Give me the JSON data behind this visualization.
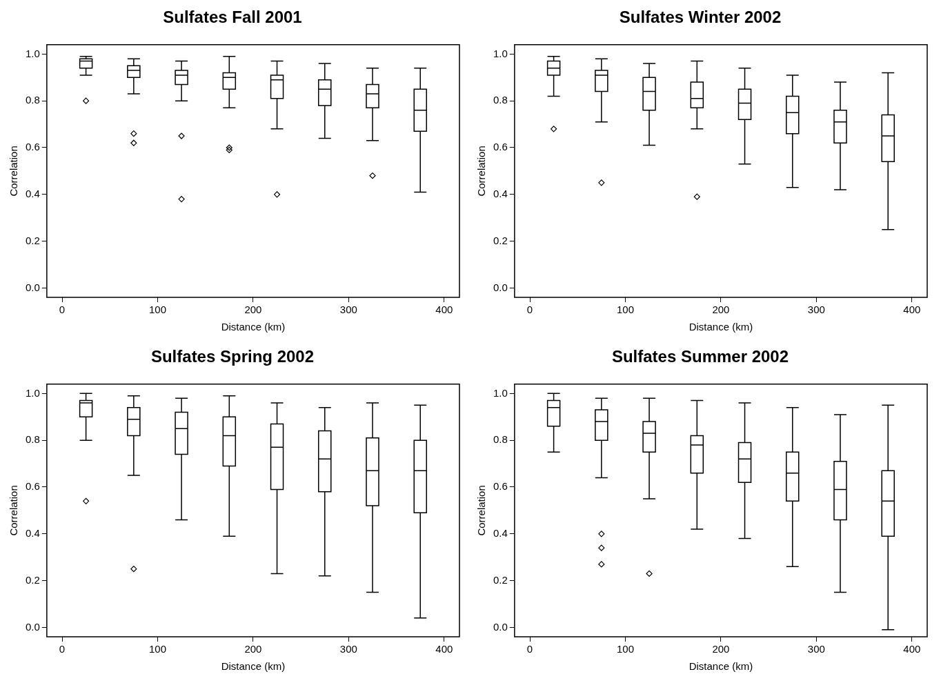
{
  "chart_data": [
    {
      "type": "box",
      "title": "Sulfates Fall 2001",
      "xlabel": "Distance (km)",
      "ylabel": "Correlation",
      "marker": "diamond",
      "x": [
        25,
        75,
        125,
        175,
        225,
        275,
        325,
        375
      ],
      "xlim": [
        -16,
        416
      ],
      "xticks": [
        0,
        100,
        200,
        300,
        400
      ],
      "ylim": [
        -0.04,
        1.04
      ],
      "yticks": [
        {
          "value": 0,
          "label": "0.0"
        },
        {
          "value": 0.2,
          "label": "0.2"
        },
        {
          "value": 0.4,
          "label": "0.4"
        },
        {
          "value": 0.6,
          "label": "0.6"
        },
        {
          "value": 0.8,
          "label": "0.8"
        },
        {
          "value": 1,
          "label": "1.0"
        }
      ],
      "boxes": [
        {
          "low": 0.91,
          "q1": 0.94,
          "median": 0.97,
          "q3": 0.98,
          "high": 0.99,
          "outliers": [
            0.8
          ]
        },
        {
          "low": 0.83,
          "q1": 0.9,
          "median": 0.93,
          "q3": 0.95,
          "high": 0.98,
          "outliers": [
            0.66,
            0.62
          ]
        },
        {
          "low": 0.8,
          "q1": 0.87,
          "median": 0.91,
          "q3": 0.93,
          "high": 0.97,
          "outliers": [
            0.65,
            0.38
          ]
        },
        {
          "low": 0.77,
          "q1": 0.85,
          "median": 0.9,
          "q3": 0.92,
          "high": 0.99,
          "outliers": [
            0.6,
            0.59
          ]
        },
        {
          "low": 0.68,
          "q1": 0.81,
          "median": 0.89,
          "q3": 0.91,
          "high": 0.97,
          "outliers": [
            0.4
          ]
        },
        {
          "low": 0.64,
          "q1": 0.78,
          "median": 0.85,
          "q3": 0.89,
          "high": 0.96
        },
        {
          "low": 0.63,
          "q1": 0.77,
          "median": 0.83,
          "q3": 0.87,
          "high": 0.94,
          "outliers": [
            0.48
          ]
        },
        {
          "low": 0.41,
          "q1": 0.67,
          "median": 0.76,
          "q3": 0.85,
          "high": 0.94
        }
      ]
    },
    {
      "type": "box",
      "title": "Sulfates Winter 2002",
      "xlabel": "Distance (km)",
      "ylabel": "Correlation",
      "marker": "diamond",
      "x": [
        25,
        75,
        125,
        175,
        225,
        275,
        325,
        375
      ],
      "xlim": [
        -16,
        416
      ],
      "xticks": [
        0,
        100,
        200,
        300,
        400
      ],
      "ylim": [
        -0.04,
        1.04
      ],
      "yticks": [
        {
          "value": 0,
          "label": "0.0"
        },
        {
          "value": 0.2,
          "label": "0.2"
        },
        {
          "value": 0.4,
          "label": "0.4"
        },
        {
          "value": 0.6,
          "label": "0.6"
        },
        {
          "value": 0.8,
          "label": "0.8"
        },
        {
          "value": 1,
          "label": "1.0"
        }
      ],
      "boxes": [
        {
          "low": 0.82,
          "q1": 0.91,
          "median": 0.94,
          "q3": 0.97,
          "high": 0.99,
          "outliers": [
            0.68
          ]
        },
        {
          "low": 0.71,
          "q1": 0.84,
          "median": 0.91,
          "q3": 0.93,
          "high": 0.98,
          "outliers": [
            0.45
          ]
        },
        {
          "low": 0.61,
          "q1": 0.76,
          "median": 0.84,
          "q3": 0.9,
          "high": 0.96
        },
        {
          "low": 0.68,
          "q1": 0.77,
          "median": 0.81,
          "q3": 0.88,
          "high": 0.97,
          "outliers": [
            0.39
          ]
        },
        {
          "low": 0.53,
          "q1": 0.72,
          "median": 0.79,
          "q3": 0.85,
          "high": 0.94
        },
        {
          "low": 0.43,
          "q1": 0.66,
          "median": 0.75,
          "q3": 0.82,
          "high": 0.91
        },
        {
          "low": 0.42,
          "q1": 0.62,
          "median": 0.71,
          "q3": 0.76,
          "high": 0.88
        },
        {
          "low": 0.25,
          "q1": 0.54,
          "median": 0.65,
          "q3": 0.74,
          "high": 0.92
        }
      ]
    },
    {
      "type": "box",
      "title": "Sulfates Spring 2002",
      "xlabel": "Distance (km)",
      "ylabel": "Correlation",
      "marker": "diamond",
      "x": [
        25,
        75,
        125,
        175,
        225,
        275,
        325,
        375
      ],
      "xlim": [
        -16,
        416
      ],
      "xticks": [
        0,
        100,
        200,
        300,
        400
      ],
      "ylim": [
        -0.04,
        1.04
      ],
      "yticks": [
        {
          "value": 0,
          "label": "0.0"
        },
        {
          "value": 0.2,
          "label": "0.2"
        },
        {
          "value": 0.4,
          "label": "0.4"
        },
        {
          "value": 0.6,
          "label": "0.6"
        },
        {
          "value": 0.8,
          "label": "0.8"
        },
        {
          "value": 1,
          "label": "1.0"
        }
      ],
      "boxes": [
        {
          "low": 0.8,
          "q1": 0.9,
          "median": 0.96,
          "q3": 0.97,
          "high": 1.0,
          "outliers": [
            0.54
          ]
        },
        {
          "low": 0.65,
          "q1": 0.82,
          "median": 0.89,
          "q3": 0.94,
          "high": 0.99,
          "outliers": [
            0.25
          ]
        },
        {
          "low": 0.46,
          "q1": 0.74,
          "median": 0.85,
          "q3": 0.92,
          "high": 0.98
        },
        {
          "low": 0.39,
          "q1": 0.69,
          "median": 0.82,
          "q3": 0.9,
          "high": 0.99
        },
        {
          "low": 0.23,
          "q1": 0.59,
          "median": 0.77,
          "q3": 0.87,
          "high": 0.96
        },
        {
          "low": 0.22,
          "q1": 0.58,
          "median": 0.72,
          "q3": 0.84,
          "high": 0.94
        },
        {
          "low": 0.15,
          "q1": 0.52,
          "median": 0.67,
          "q3": 0.81,
          "high": 0.96
        },
        {
          "low": 0.04,
          "q1": 0.49,
          "median": 0.67,
          "q3": 0.8,
          "high": 0.95
        }
      ]
    },
    {
      "type": "box",
      "title": "Sulfates Summer 2002",
      "xlabel": "Distance (km)",
      "ylabel": "Correlation",
      "marker": "diamond",
      "x": [
        25,
        75,
        125,
        175,
        225,
        275,
        325,
        375
      ],
      "xlim": [
        -16,
        416
      ],
      "xticks": [
        0,
        100,
        200,
        300,
        400
      ],
      "ylim": [
        -0.04,
        1.04
      ],
      "yticks": [
        {
          "value": 0,
          "label": "0.0"
        },
        {
          "value": 0.2,
          "label": "0.2"
        },
        {
          "value": 0.4,
          "label": "0.4"
        },
        {
          "value": 0.6,
          "label": "0.6"
        },
        {
          "value": 0.8,
          "label": "0.8"
        },
        {
          "value": 1,
          "label": "1.0"
        }
      ],
      "boxes": [
        {
          "low": 0.75,
          "q1": 0.86,
          "median": 0.94,
          "q3": 0.97,
          "high": 1.0
        },
        {
          "low": 0.64,
          "q1": 0.8,
          "median": 0.88,
          "q3": 0.93,
          "high": 0.98,
          "outliers": [
            0.4,
            0.34,
            0.27
          ]
        },
        {
          "low": 0.55,
          "q1": 0.75,
          "median": 0.83,
          "q3": 0.88,
          "high": 0.98,
          "outliers": [
            0.23
          ]
        },
        {
          "low": 0.42,
          "q1": 0.66,
          "median": 0.78,
          "q3": 0.82,
          "high": 0.97
        },
        {
          "low": 0.38,
          "q1": 0.62,
          "median": 0.72,
          "q3": 0.79,
          "high": 0.96
        },
        {
          "low": 0.26,
          "q1": 0.54,
          "median": 0.66,
          "q3": 0.75,
          "high": 0.94
        },
        {
          "low": 0.15,
          "q1": 0.46,
          "median": 0.59,
          "q3": 0.71,
          "high": 0.91
        },
        {
          "low": -0.01,
          "q1": 0.39,
          "median": 0.54,
          "q3": 0.67,
          "high": 0.95
        }
      ]
    }
  ]
}
